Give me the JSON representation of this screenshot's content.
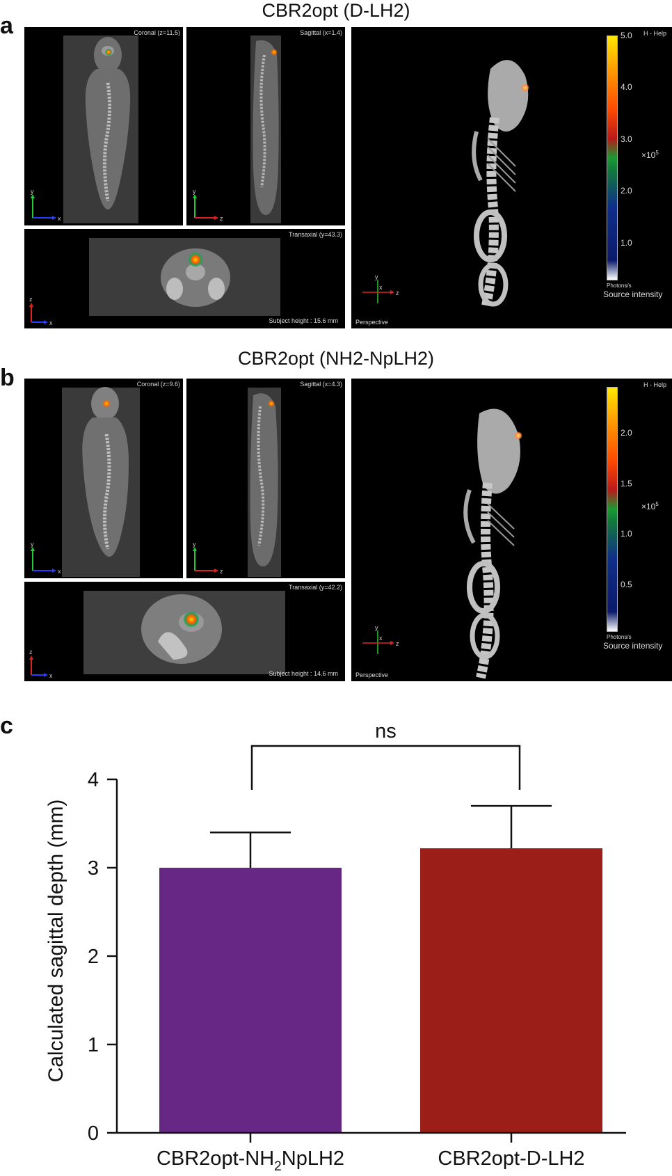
{
  "figure": {
    "panels": [
      {
        "letter": "a",
        "title": "CBR2opt (D-LH2)",
        "coronal_label": "Coronal (z=11.5)",
        "sagittal_label": "Sagittal (x=1.4)",
        "transaxial_label": "Transaxial (y=43.3)",
        "subject_height": "Subject height : 15.6 mm",
        "help": "H - Help",
        "perspective": "Perspective",
        "colorbar": {
          "ticks": [
            "5.0",
            "4.0",
            "3.0",
            "2.0",
            "1.0"
          ],
          "tick_values": [
            5.0,
            4.0,
            3.0,
            2.0,
            1.0
          ],
          "max": 5.0,
          "min": 0.3,
          "exponent_base": "×10",
          "exponent_power": "5",
          "unit": "Photons/s",
          "name": "Source intensity"
        }
      },
      {
        "letter": "b",
        "title": "CBR2opt (NH2-NpLH2)",
        "coronal_label": "Coronal (z=9.6)",
        "sagittal_label": "Sagittal (x=4.3)",
        "transaxial_label": "Transaxial (y=42.2)",
        "subject_height": "Subject height : 14.6 mm",
        "help": "H - Help",
        "perspective": "Perspective",
        "colorbar": {
          "ticks": [
            "2.0",
            "1.5",
            "1.0",
            "0.5"
          ],
          "tick_values": [
            2.0,
            1.5,
            1.0,
            0.5
          ],
          "max": 2.45,
          "min": 0.05,
          "exponent_base": "×10",
          "exponent_power": "5",
          "unit": "Photons/s",
          "name": "Source intensity"
        }
      }
    ],
    "axis_letters": {
      "x": "x",
      "y": "y",
      "z": "z"
    },
    "colors": {
      "x_axis": "#2a3cff",
      "y_axis": "#22cc33",
      "z_axis": "#dd2222",
      "bar1": "#672785",
      "bar2": "#9c1e18"
    }
  },
  "chart_data": {
    "letter": "c",
    "type": "bar",
    "categories": [
      "CBR2opt-NH2NpLH2",
      "CBR2opt-D-LH2"
    ],
    "category_parts": [
      {
        "pre": "CBR2opt-NH",
        "sub": "2",
        "post": "NpLH2"
      },
      {
        "pre": "CBR2opt-D-LH2",
        "sub": "",
        "post": ""
      }
    ],
    "values": [
      3.0,
      3.22
    ],
    "error_upper": [
      3.4,
      3.7
    ],
    "ylabel": "Calculated sagittal depth (mm)",
    "xlabel": "",
    "ylim": [
      0,
      4
    ],
    "yticks": [
      0,
      1,
      2,
      3,
      4
    ],
    "ytick_labels": [
      "0",
      "1",
      "2",
      "3",
      "4"
    ],
    "significance": "ns",
    "colors": [
      "#672785",
      "#9c1e18"
    ]
  }
}
